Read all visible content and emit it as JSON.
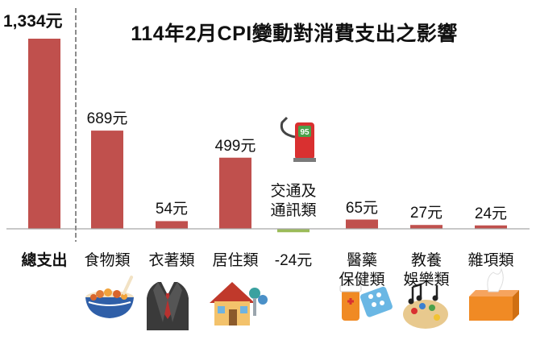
{
  "chart_data": {
    "type": "bar",
    "title": "114年2月CPI變動對消費支出之影響",
    "baseline_value": 0,
    "ylim": [
      -30,
      1334
    ],
    "categories": [
      {
        "key": "total",
        "lines": [
          "總支出"
        ]
      },
      {
        "key": "food",
        "lines": [
          "食物類"
        ]
      },
      {
        "key": "clothing",
        "lines": [
          "衣著類"
        ]
      },
      {
        "key": "housing",
        "lines": [
          "居住類"
        ]
      },
      {
        "key": "transport",
        "lines": [
          "交通及",
          "通訊類"
        ]
      },
      {
        "key": "medical",
        "lines": [
          "醫藥",
          "保健類"
        ]
      },
      {
        "key": "education",
        "lines": [
          "教養",
          "娛樂類"
        ]
      },
      {
        "key": "misc",
        "lines": [
          "雜項類"
        ]
      }
    ],
    "values": [
      1334,
      689,
      54,
      499,
      -24,
      65,
      27,
      24
    ],
    "value_labels": [
      "1,334元",
      "689元",
      "54元",
      "499元",
      "-24元",
      "65元",
      "27元",
      "24元"
    ],
    "colors": {
      "positive": "#c0504d",
      "negative": "#9bbb59",
      "axis": "#a6a6a6",
      "divider": "#8c8c8c"
    },
    "icons": [
      "bowl-of-food-icon",
      "suit-icon",
      "house-with-keys-icon",
      "gas-pump-icon",
      "medicine-icon",
      "music-palette-icon",
      "tissue-box-icon"
    ]
  }
}
